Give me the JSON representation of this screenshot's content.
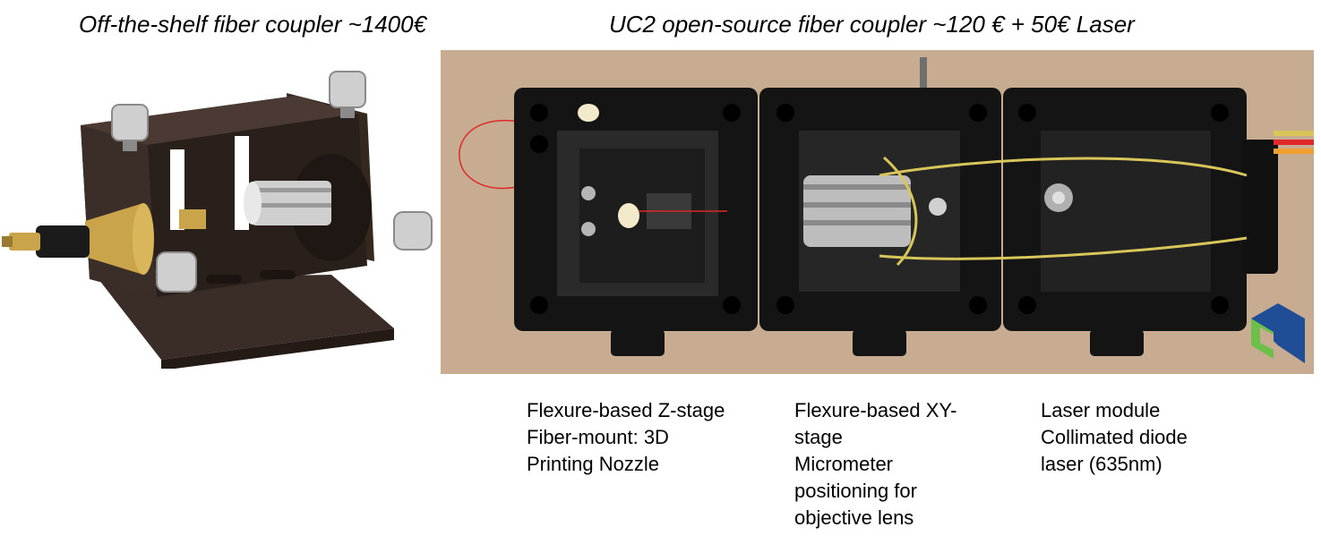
{
  "titles": {
    "left": "Off-the-shelf fiber coupler ~1400€",
    "right": "UC2 open-source fiber coupler ~120 € + 50€ Laser"
  },
  "captions": [
    {
      "lines": [
        "Flexure-based Z-stage",
        "Fiber-mount: 3D",
        "Printing Nozzle"
      ]
    },
    {
      "lines": [
        "Flexure-based XY-",
        "stage",
        "Micrometer",
        "positioning for",
        "objective lens"
      ]
    },
    {
      "lines": [
        "Laser module",
        "Collimated diode",
        "laser (635nm)"
      ]
    }
  ],
  "colors": {
    "mount_body": "#2b211d",
    "brass": "#c9a44a",
    "knob_silver": "#cfcfcf",
    "wood_background": "#c7ac91",
    "uc2_cube_black": "#111111",
    "laser_red": "#e0282a",
    "rubber_band_yellow": "#d8c65a",
    "logo_blue": "#1f4e96",
    "logo_green": "#6cc04a"
  },
  "icons": [
    "uc2-logo-icon"
  ]
}
